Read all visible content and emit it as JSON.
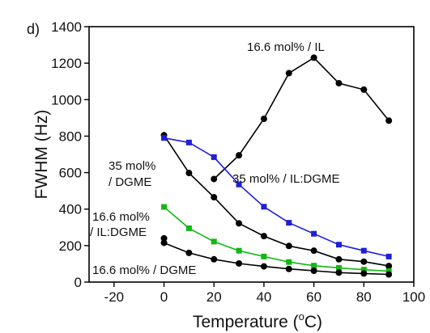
{
  "panel_label": "d)",
  "chart_data": {
    "type": "line",
    "xlabel": "Temperature (",
    "xlabel_sup": "o",
    "xlabel_tail": "C)",
    "ylabel": "FWHM (Hz)",
    "xlim": [
      -30,
      100
    ],
    "ylim": [
      0,
      1400
    ],
    "xticks": [
      -20,
      0,
      20,
      40,
      60,
      80,
      100
    ],
    "yticks": [
      0,
      200,
      400,
      600,
      800,
      1000,
      1200,
      1400
    ],
    "grid": false,
    "series": [
      {
        "color": "#000000",
        "marker": "circle",
        "points": [
          [
            20,
            565
          ],
          [
            30,
            695
          ],
          [
            40,
            895
          ],
          [
            50,
            1145
          ],
          [
            60,
            1230
          ],
          [
            70,
            1090
          ],
          [
            80,
            1055
          ],
          [
            90,
            885
          ]
        ]
      },
      {
        "color": "#000000",
        "marker": "circle",
        "points": [
          [
            0,
            805
          ],
          [
            10,
            598
          ],
          [
            20,
            465
          ],
          [
            30,
            322
          ],
          [
            40,
            252
          ],
          [
            50,
            198
          ],
          [
            60,
            172
          ],
          [
            70,
            125
          ],
          [
            80,
            112
          ],
          [
            90,
            88
          ]
        ]
      },
      {
        "color": "#1f1fd6",
        "marker": "square",
        "points": [
          [
            0,
            790
          ],
          [
            10,
            765
          ],
          [
            20,
            685
          ],
          [
            30,
            535
          ],
          [
            40,
            413
          ],
          [
            50,
            325
          ],
          [
            60,
            265
          ],
          [
            70,
            205
          ],
          [
            80,
            172
          ],
          [
            90,
            140
          ]
        ]
      },
      {
        "color": "#11b811",
        "marker": "square",
        "points": [
          [
            0,
            412
          ],
          [
            10,
            295
          ],
          [
            20,
            222
          ],
          [
            30,
            172
          ],
          [
            40,
            140
          ],
          [
            50,
            110
          ],
          [
            60,
            90
          ],
          [
            70,
            78
          ],
          [
            80,
            68
          ],
          [
            90,
            60
          ]
        ]
      },
      {
        "color": "#000000",
        "marker": "circle",
        "points": [
          [
            0,
            215
          ],
          [
            10,
            160
          ],
          [
            20,
            125
          ],
          [
            30,
            102
          ],
          [
            40,
            86
          ],
          [
            50,
            72
          ],
          [
            60,
            62
          ],
          [
            70,
            52
          ],
          [
            80,
            47
          ],
          [
            90,
            42
          ]
        ]
      },
      {
        "color": "#000000",
        "marker": "circle",
        "points": [
          [
            0,
            240
          ]
        ]
      }
    ],
    "annotations": [
      {
        "id": "ann-il",
        "text": "16.6 mol% / IL"
      },
      {
        "id": "ann-35-dgme-1",
        "text": "35 mol%"
      },
      {
        "id": "ann-35-dgme-2",
        "text": "/ DGME"
      },
      {
        "id": "ann-35-ildgme",
        "text": "35 mol% / IL:DGME"
      },
      {
        "id": "ann-166-ildgme-1",
        "text": "16.6 mol%"
      },
      {
        "id": "ann-166-ildgme-2",
        "text": "/ IL:DGME"
      },
      {
        "id": "ann-166-dgme",
        "text": "16.6 mol% / DGME"
      }
    ]
  }
}
